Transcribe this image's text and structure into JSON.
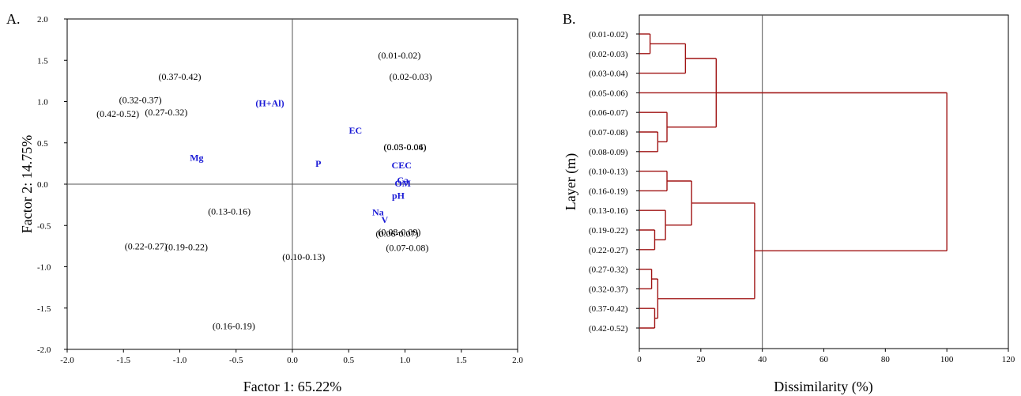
{
  "chart_data": [
    {
      "panel": "A.",
      "type": "scatter",
      "xlabel": "Factor 1: 65.22%",
      "ylabel": "Factor 2: 14.75%",
      "xlim": [
        -2.0,
        2.0
      ],
      "ylim": [
        -2.0,
        2.0
      ],
      "xticks": [
        "-2.0",
        "-1.5",
        "-1.0",
        "-0.5",
        "0.0",
        "0.5",
        "1.0",
        "1.5",
        "2.0"
      ],
      "yticks": [
        "2.0",
        "1.5",
        "1.0",
        "0.5",
        "0.0",
        "-0.5",
        "-1.0",
        "-1.5",
        "-2.0"
      ],
      "cases": [
        {
          "label": "(0.01-0.02)",
          "x": 0.95,
          "y": 1.56
        },
        {
          "label": "(0.02-0.03)",
          "x": 1.05,
          "y": 1.3
        },
        {
          "label": "(0.37-0.42)",
          "x": -1.0,
          "y": 1.3
        },
        {
          "label": "(0.32-0.37)",
          "x": -1.35,
          "y": 1.02
        },
        {
          "label": "(0.42-0.52)",
          "x": -1.55,
          "y": 0.85
        },
        {
          "label": "(0.27-0.32)",
          "x": -1.12,
          "y": 0.87
        },
        {
          "label": "(0.05-0.06)",
          "x": 1.0,
          "y": 0.45
        },
        {
          "label": "(0.03-0.04)",
          "x": 1.0,
          "y": 0.45
        },
        {
          "label": "(0.13-0.16)",
          "x": -0.56,
          "y": -0.33
        },
        {
          "label": "(0.08-0.09)",
          "x": 0.95,
          "y": -0.58
        },
        {
          "label": "(0.06-0.07)",
          "x": 0.93,
          "y": -0.6
        },
        {
          "label": "(0.07-0.08)",
          "x": 1.02,
          "y": -0.77
        },
        {
          "label": "(0.22-0.27)",
          "x": -1.3,
          "y": -0.75
        },
        {
          "label": "(0.19-0.22)",
          "x": -0.94,
          "y": -0.76
        },
        {
          "label": "(0.10-0.13)",
          "x": 0.1,
          "y": -0.88
        },
        {
          "label": "(0.16-0.19)",
          "x": -0.52,
          "y": -1.72
        }
      ],
      "variables": [
        {
          "label": "(H+Al)",
          "x": -0.2,
          "y": 0.98
        },
        {
          "label": "EC",
          "x": 0.56,
          "y": 0.65
        },
        {
          "label": "Mg",
          "x": -0.85,
          "y": 0.32
        },
        {
          "label": "P",
          "x": 0.23,
          "y": 0.25
        },
        {
          "label": "CEC",
          "x": 0.97,
          "y": 0.23
        },
        {
          "label": "Ca",
          "x": 0.98,
          "y": 0.05
        },
        {
          "label": "OM",
          "x": 0.98,
          "y": 0.01
        },
        {
          "label": "pH",
          "x": 0.94,
          "y": -0.14
        },
        {
          "label": "Na",
          "x": 0.76,
          "y": -0.34
        },
        {
          "label": "V",
          "x": 0.82,
          "y": -0.43
        }
      ]
    },
    {
      "panel": "B.",
      "type": "dendrogram",
      "xlabel": "Dissimilarity (%)",
      "ylabel": "Layer (m)",
      "xlim": [
        0,
        120
      ],
      "xticks": [
        "0",
        "20",
        "40",
        "60",
        "80",
        "100",
        "120"
      ],
      "cutoff_line": 40,
      "leaves": [
        "(0.01-0.02)",
        "(0.02-0.03)",
        "(0.03-0.04)",
        "(0.05-0.06)",
        "(0.06-0.07)",
        "(0.07-0.08)",
        "(0.08-0.09)",
        "(0.10-0.13)",
        "(0.16-0.19)",
        "(0.13-0.16)",
        "(0.19-0.22)",
        "(0.22-0.27)",
        "(0.27-0.32)",
        "(0.32-0.37)",
        "(0.37-0.42)",
        "(0.42-0.52)"
      ],
      "merges": [
        {
          "a": "L0",
          "b": "L1",
          "h": 3.5,
          "id": "n1"
        },
        {
          "a": "n1",
          "b": "L2",
          "h": 15,
          "id": "n2"
        },
        {
          "a": "L5",
          "b": "L6",
          "h": 6,
          "id": "n3"
        },
        {
          "a": "L4",
          "b": "n3",
          "h": 9,
          "id": "n4"
        },
        {
          "a": "n2",
          "b": "n4",
          "h": 25,
          "id": "n5"
        },
        {
          "a": "n5",
          "b": "L3",
          "h": 100,
          "id": "n6"
        },
        {
          "a": "L7",
          "b": "L8",
          "h": 9,
          "id": "n7"
        },
        {
          "a": "L10",
          "b": "L11",
          "h": 5,
          "id": "n8"
        },
        {
          "a": "L9",
          "b": "n8",
          "h": 8.5,
          "id": "n9"
        },
        {
          "a": "n7",
          "b": "n9",
          "h": 17,
          "id": "n10"
        },
        {
          "a": "L12",
          "b": "L13",
          "h": 4,
          "id": "n11"
        },
        {
          "a": "L14",
          "b": "L15",
          "h": 5,
          "id": "n12"
        },
        {
          "a": "n11",
          "b": "n12",
          "h": 6,
          "id": "n13"
        },
        {
          "a": "n10",
          "b": "n13",
          "h": 37.5,
          "id": "n14"
        },
        {
          "a": "n6",
          "b": "n14",
          "h": 100,
          "id": "n15"
        }
      ]
    }
  ]
}
